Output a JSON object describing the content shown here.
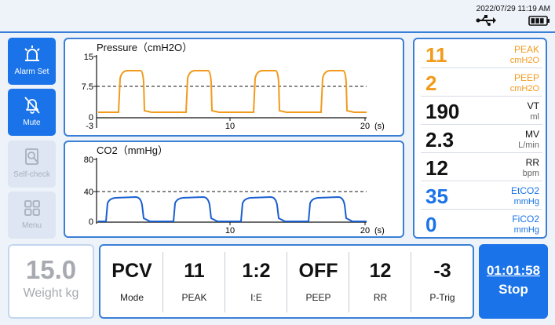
{
  "status_bar": {
    "datetime": "2022/07/29 11:19  AM",
    "icons": [
      "usb-icon",
      "battery-icon"
    ]
  },
  "sidebar": {
    "items": [
      {
        "label": "Alarm Set",
        "icon": "alarm-icon",
        "state": "active"
      },
      {
        "label": "Mute",
        "icon": "bell-muted-icon",
        "state": "active"
      },
      {
        "label": "Self-check",
        "icon": "self-check-icon",
        "state": "disabled"
      },
      {
        "label": "Menu",
        "icon": "grid-menu-icon",
        "state": "disabled"
      }
    ]
  },
  "waveforms": {
    "pressure": {
      "title": "Pressure（cmH2O）",
      "y_ticks": [
        "15",
        "7.5",
        "0",
        "-3"
      ],
      "x_ticks": [
        "10",
        "20"
      ],
      "x_unit": "(s)",
      "color": "#f29a1c"
    },
    "co2": {
      "title": "CO2（mmHg）",
      "y_ticks": [
        "80",
        "40",
        "0"
      ],
      "x_ticks": [
        "10",
        "20"
      ],
      "x_unit": "(s)",
      "color": "#1a5fd0"
    }
  },
  "readouts": [
    {
      "value": "11",
      "name": "PEAK",
      "unit": "cmH2O",
      "color": "#f29a1c"
    },
    {
      "value": "2",
      "name": "PEEP",
      "unit": "cmH2O",
      "color": "#f29a1c"
    },
    {
      "value": "190",
      "name": "VT",
      "unit": "ml",
      "color": "#111111"
    },
    {
      "value": "2.3",
      "name": "MV",
      "unit": "L/min",
      "color": "#111111"
    },
    {
      "value": "12",
      "name": "RR",
      "unit": "bpm",
      "color": "#111111"
    },
    {
      "value": "35",
      "name": "EtCO2",
      "unit": "mmHg",
      "color": "#1a73e8"
    },
    {
      "value": "0",
      "name": "FiCO2",
      "unit": "mmHg",
      "color": "#1a73e8"
    }
  ],
  "weight": {
    "value": "15.0",
    "label": "Weight kg"
  },
  "settings": [
    {
      "value": "PCV",
      "label": "Mode"
    },
    {
      "value": "11",
      "label": "PEAK"
    },
    {
      "value": "1:2",
      "label": "I:E"
    },
    {
      "value": "OFF",
      "label": "PEEP"
    },
    {
      "value": "12",
      "label": "RR"
    },
    {
      "value": "-3",
      "label": "P-Trig"
    }
  ],
  "timer": {
    "time": "01:01:58",
    "action": "Stop"
  },
  "colors": {
    "accent": "#1a73e8",
    "pressure": "#f29a1c",
    "co2": "#1a5fd0",
    "disabled": "#dde6f2"
  }
}
